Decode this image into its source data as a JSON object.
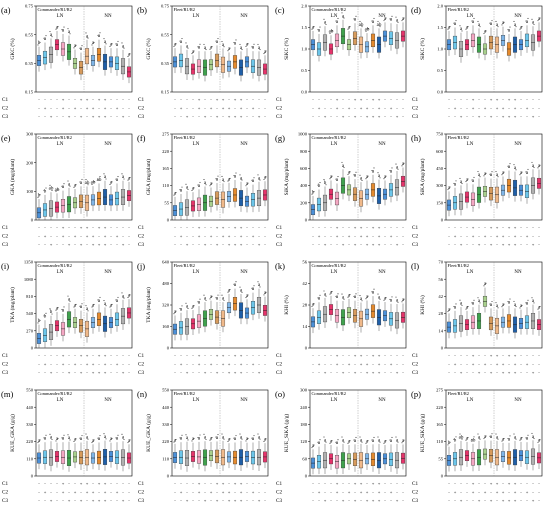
{
  "figure": {
    "panel_order": [
      "a",
      "b",
      "c",
      "d",
      "e",
      "f",
      "g",
      "h",
      "i",
      "j",
      "k",
      "l",
      "m",
      "n",
      "o",
      "p"
    ],
    "row_labels": [
      "C1",
      "C2",
      "C3"
    ],
    "treatment_labels": [
      "LN",
      "NN"
    ],
    "colors": [
      "#4a90d9",
      "#6cc6ea",
      "#b0b0b0",
      "#e6336b",
      "#f4a7c3",
      "#3fa24d",
      "#a8d08d",
      "#d79b5c",
      "#f0b98a",
      "#7fb6e8",
      "#e58a2d",
      "#1f5fa8"
    ],
    "signs": {
      "C1": [
        "-",
        "-",
        "-",
        "-",
        "+",
        "-",
        "-",
        "+",
        "+",
        "-",
        "+",
        "+"
      ],
      "C2": [
        "-",
        "+",
        "-",
        "-",
        "+",
        "-",
        "+",
        "-",
        "+",
        "+",
        "-",
        "+"
      ],
      "C3": [
        "-",
        "-",
        "+",
        "-",
        "-",
        "+",
        "-",
        "+",
        "-",
        "+",
        "+",
        "+"
      ]
    }
  },
  "chart_data": [
    {
      "id": "a",
      "type": "box",
      "panel_label": "(a)",
      "cultivar": "Commander/R1/R2",
      "ylabel": "GKC (%)",
      "yticks": [
        "0.15",
        "0.35",
        "0.55",
        "0.75"
      ],
      "ylim": [
        0.15,
        0.75
      ],
      "treatments": [
        "LN",
        "NN"
      ],
      "medians": [
        0.37,
        0.39,
        0.41,
        0.48,
        0.45,
        0.43,
        0.35,
        0.32,
        0.4,
        0.37,
        0.41,
        0.36,
        0.36,
        0.35,
        0.33,
        0.29
      ],
      "letters": [
        "b",
        "a",
        "a",
        "a",
        "a",
        "a",
        "a",
        "a",
        "a",
        "a",
        "a",
        "a",
        "a",
        "a",
        "a",
        "a"
      ]
    },
    {
      "id": "b",
      "type": "box",
      "panel_label": "(b)",
      "cultivar": "Fleet/R1/R2",
      "ylabel": "GKC (%)",
      "yticks": [
        "0.15",
        "0.35",
        "0.55",
        "0.75"
      ],
      "ylim": [
        0.15,
        0.75
      ],
      "treatments": [
        "LN",
        "NN"
      ],
      "medians": [
        0.36,
        0.37,
        0.33,
        0.31,
        0.33,
        0.32,
        0.34,
        0.37,
        0.34,
        0.33,
        0.36,
        0.32,
        0.36,
        0.33,
        0.32,
        0.31
      ],
      "letters": [
        "a",
        "a",
        "a",
        "a",
        "a",
        "a",
        "a",
        "a",
        "a",
        "a",
        "a",
        "a",
        "a",
        "a",
        "a",
        "a"
      ]
    },
    {
      "id": "c",
      "type": "box",
      "panel_label": "(c)",
      "cultivar": "Commander/R1/R2",
      "ylabel": "SiKC (%)",
      "yticks": [
        "0.0",
        "0.5",
        "1.0",
        "1.5",
        "2.0"
      ],
      "ylim": [
        0,
        2
      ],
      "treatments": [
        "LN",
        "NN"
      ],
      "medians": [
        1.1,
        1.0,
        1.15,
        1.0,
        1.2,
        1.3,
        1.1,
        1.25,
        1.1,
        1.05,
        1.2,
        1.1,
        1.3,
        1.25,
        1.2,
        1.3
      ],
      "letters": [
        "a",
        "a",
        "a",
        "ab",
        "a",
        "a",
        "a",
        "a",
        "ab",
        "ab",
        "a",
        "ab",
        "a",
        "a",
        "a",
        "a"
      ]
    },
    {
      "id": "d",
      "type": "box",
      "panel_label": "(d)",
      "cultivar": "Fleet/R1/R2",
      "ylabel": "SiKC (%)",
      "yticks": [
        "0.0",
        "0.5",
        "1.0",
        "1.5",
        "2.0"
      ],
      "ylim": [
        0,
        2
      ],
      "treatments": [
        "LN",
        "NN"
      ],
      "medians": [
        1.1,
        1.15,
        1.0,
        1.1,
        1.2,
        1.1,
        1.0,
        1.15,
        1.1,
        1.2,
        1.0,
        1.1,
        1.1,
        1.2,
        1.15,
        1.3
      ],
      "letters": [
        "a",
        "a",
        "a",
        "a",
        "a",
        "a",
        "a",
        "a",
        "a",
        "a",
        "a",
        "a",
        "a",
        "a",
        "a",
        "a"
      ]
    },
    {
      "id": "e",
      "type": "box",
      "panel_label": "(e)",
      "cultivar": "Commander/R1/R2",
      "ylabel": "GKA (mg/plant)",
      "yticks": [
        "0",
        "100",
        "200",
        "300"
      ],
      "ylim": [
        0,
        300
      ],
      "treatments": [
        "LN",
        "NN"
      ],
      "medians": [
        25,
        35,
        40,
        45,
        50,
        55,
        60,
        65,
        60,
        70,
        75,
        80,
        70,
        75,
        80,
        85
      ],
      "letters": [
        "b",
        "b",
        "ab",
        "ab",
        "a",
        "a",
        "a",
        "a",
        "ab",
        "ab",
        "ab",
        "a",
        "a",
        "a",
        "a",
        "a"
      ]
    },
    {
      "id": "f",
      "type": "box",
      "panel_label": "(f)",
      "cultivar": "Fleet/R1/R2",
      "ylabel": "GKA (mg/plant)",
      "yticks": [
        "0",
        "55",
        "110",
        "165",
        "220",
        "275"
      ],
      "ylim": [
        0,
        275
      ],
      "treatments": [
        "LN",
        "NN"
      ],
      "medians": [
        30,
        35,
        40,
        45,
        50,
        55,
        60,
        70,
        65,
        75,
        80,
        70,
        60,
        65,
        70,
        80
      ],
      "letters": [
        "a",
        "a",
        "a",
        "a",
        "a",
        "a",
        "a",
        "a",
        "a",
        "a",
        "a",
        "a",
        "a",
        "a",
        "a",
        "a"
      ]
    },
    {
      "id": "g",
      "type": "box",
      "panel_label": "(g)",
      "cultivar": "Commander/R1/R2",
      "ylabel": "SiKA (mg/plant)",
      "yticks": [
        "0",
        "200",
        "400",
        "600",
        "800",
        "1000"
      ],
      "ylim": [
        0,
        1000
      ],
      "treatments": [
        "LN",
        "NN"
      ],
      "medians": [
        120,
        180,
        200,
        300,
        250,
        400,
        350,
        300,
        250,
        300,
        350,
        280,
        300,
        350,
        380,
        450
      ],
      "letters": [
        "b",
        "b",
        "b",
        "a",
        "a",
        "a",
        "a",
        "a",
        "a",
        "a",
        "a",
        "a",
        "a",
        "a",
        "a",
        "a"
      ]
    },
    {
      "id": "h",
      "type": "box",
      "panel_label": "(h)",
      "cultivar": "Fleet/R1/R2",
      "ylabel": "SiKA (mg/plant)",
      "yticks": [
        "0",
        "150",
        "300",
        "450",
        "600",
        "750"
      ],
      "ylim": [
        0,
        750
      ],
      "treatments": [
        "LN",
        "NN"
      ],
      "medians": [
        130,
        150,
        160,
        200,
        180,
        220,
        250,
        230,
        220,
        260,
        300,
        280,
        260,
        250,
        300,
        320
      ],
      "letters": [
        "a",
        "a",
        "a",
        "a",
        "a",
        "a",
        "a",
        "a",
        "a",
        "a",
        "a",
        "a",
        "a",
        "a",
        "a",
        "a"
      ]
    },
    {
      "id": "i",
      "type": "box",
      "panel_label": "(i)",
      "cultivar": "Commander/R1/R2",
      "ylabel": "TKA (mg/plant)",
      "yticks": [
        "0",
        "270",
        "540",
        "810",
        "1080",
        "1350"
      ],
      "ylim": [
        0,
        1350
      ],
      "treatments": [
        "LN",
        "NN"
      ],
      "medians": [
        150,
        200,
        250,
        350,
        300,
        450,
        400,
        350,
        300,
        400,
        450,
        380,
        400,
        450,
        500,
        550
      ],
      "letters": [
        "b",
        "b",
        "b",
        "a",
        "a",
        "a",
        "a",
        "a",
        "a",
        "a",
        "a",
        "a",
        "a",
        "a",
        "a",
        "a"
      ]
    },
    {
      "id": "j",
      "type": "box",
      "panel_label": "(j)",
      "cultivar": "Fleet/R1/R2",
      "ylabel": "TKA (mg/plant)",
      "yticks": [
        "0",
        "160",
        "320",
        "480",
        "640"
      ],
      "ylim": [
        0,
        640
      ],
      "treatments": [
        "LN",
        "NN"
      ],
      "medians": [
        140,
        150,
        160,
        180,
        200,
        220,
        250,
        230,
        220,
        300,
        330,
        280,
        260,
        300,
        320,
        280
      ],
      "letters": [
        "a",
        "a",
        "a",
        "a",
        "a",
        "a",
        "a",
        "a",
        "a",
        "a",
        "a",
        "a",
        "a",
        "a",
        "a",
        "a"
      ]
    },
    {
      "id": "k",
      "type": "box",
      "panel_label": "(k)",
      "cultivar": "Commander/R1/R2",
      "ylabel": "KHI (%)",
      "yticks": [
        "0",
        "14",
        "28",
        "42",
        "56"
      ],
      "ylim": [
        0,
        56
      ],
      "treatments": [
        "LN",
        "NN"
      ],
      "medians": [
        17,
        20,
        22,
        25,
        21,
        20,
        23,
        21,
        19,
        22,
        24,
        20,
        21,
        19,
        18,
        20
      ],
      "letters": [
        "a",
        "a",
        "a",
        "a",
        "a",
        "a",
        "a",
        "a",
        "a",
        "a",
        "a",
        "a",
        "a",
        "a",
        "a",
        "a"
      ]
    },
    {
      "id": "l",
      "type": "box",
      "panel_label": "(l)",
      "cultivar": "Fleet/R1/R2",
      "ylabel": "KHI (%)",
      "yticks": [
        "0",
        "14",
        "28",
        "42",
        "56",
        "70"
      ],
      "ylim": [
        0,
        70
      ],
      "treatments": [
        "LN",
        "NN"
      ],
      "medians": [
        17,
        18,
        20,
        19,
        21,
        22,
        38,
        20,
        18,
        21,
        22,
        19,
        20,
        21,
        22,
        19
      ],
      "letters": [
        "a",
        "a",
        "a",
        "a",
        "a",
        "a",
        "a",
        "a",
        "a",
        "a",
        "a",
        "a",
        "a",
        "a",
        "a",
        "a"
      ]
    },
    {
      "id": "m",
      "type": "box",
      "panel_label": "(m)",
      "cultivar": "Commander/R1/R2",
      "ylabel": "KUE_GKA (g/g)",
      "yticks": [
        "0",
        "110",
        "220",
        "330",
        "440",
        "550"
      ],
      "ylim": [
        0,
        550
      ],
      "treatments": [
        "LN",
        "NN"
      ],
      "medians": [
        115,
        120,
        118,
        125,
        120,
        115,
        122,
        118,
        120,
        115,
        118,
        122,
        125,
        120,
        118,
        115
      ],
      "letters": [
        "a",
        "a",
        "a",
        "a",
        "a",
        "a",
        "a",
        "a",
        "a",
        "a",
        "a",
        "a",
        "a",
        "a",
        "a",
        "a"
      ]
    },
    {
      "id": "n",
      "type": "box",
      "panel_label": "(n)",
      "cultivar": "Fleet/R1/R2",
      "ylabel": "KUE_GKA (g/g)",
      "yticks": [
        "0",
        "110",
        "220",
        "330",
        "440",
        "550"
      ],
      "ylim": [
        0,
        550
      ],
      "treatments": [
        "LN",
        "NN"
      ],
      "medians": [
        118,
        120,
        115,
        125,
        122,
        118,
        130,
        125,
        120,
        122,
        118,
        120,
        125,
        118,
        120,
        122
      ],
      "letters": [
        "a",
        "a",
        "a",
        "a",
        "a",
        "a",
        "a",
        "a",
        "a",
        "a",
        "a",
        "a",
        "a",
        "a",
        "a",
        "a"
      ]
    },
    {
      "id": "o",
      "type": "box",
      "panel_label": "(o)",
      "cultivar": "Commander/R1/R2",
      "ylabel": "KUE_SiKA (g/g)",
      "yticks": [
        "0",
        "60",
        "120",
        "180",
        "240",
        "300"
      ],
      "ylim": [
        0,
        300
      ],
      "treatments": [
        "LN",
        "NN"
      ],
      "medians": [
        45,
        50,
        55,
        60,
        50,
        55,
        60,
        58,
        55,
        60,
        58,
        55,
        60,
        58,
        55,
        62
      ],
      "letters": [
        "a",
        "a",
        "a",
        "a",
        "a",
        "a",
        "a",
        "a",
        "a",
        "a",
        "a",
        "a",
        "a",
        "a",
        "a",
        "a"
      ]
    },
    {
      "id": "p",
      "type": "box",
      "panel_label": "(p)",
      "cultivar": "Fleet/R1/R2",
      "ylabel": "KUE_SiKA (g/g)",
      "yticks": [
        "0",
        "55",
        "110",
        "165",
        "220",
        "275"
      ],
      "ylim": [
        0,
        275
      ],
      "treatments": [
        "LN",
        "NN"
      ],
      "medians": [
        50,
        55,
        60,
        65,
        55,
        60,
        70,
        65,
        60,
        62,
        58,
        60,
        65,
        60,
        62,
        58
      ],
      "letters": [
        "b",
        "b",
        "ab",
        "a",
        "ab",
        "a",
        "a",
        "a",
        "a",
        "a",
        "a",
        "a",
        "a",
        "a",
        "a",
        "a"
      ]
    }
  ]
}
